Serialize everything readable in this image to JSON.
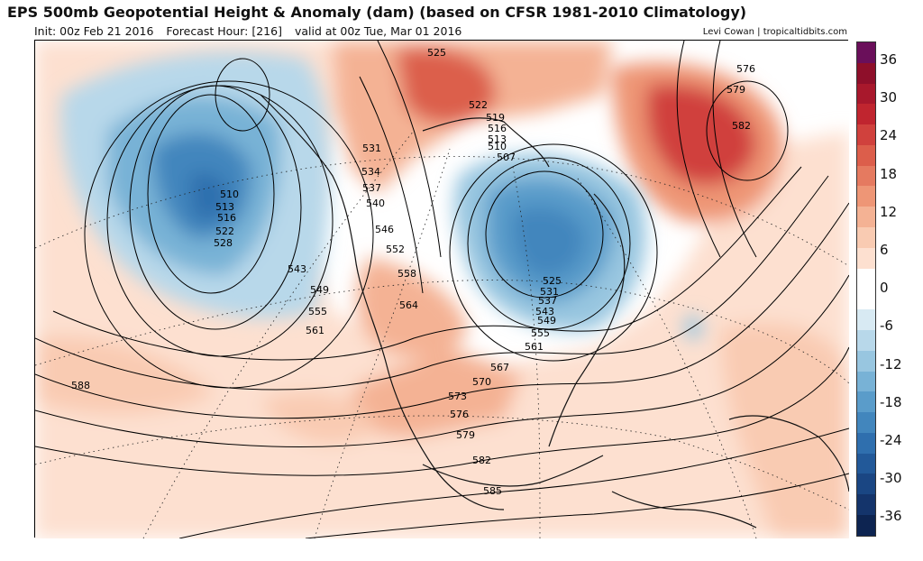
{
  "header": {
    "title": "EPS 500mb Geopotential Height & Anomaly (dam) (based on CFSR 1981-2010 Climatology)",
    "init": "Init: 00z Feb 21 2016",
    "forecast_hour": "Forecast Hour: [216]",
    "valid": "valid at 00z Tue, Mar 01 2016",
    "credit": "Levi Cowan | tropicaltidbits.com"
  },
  "colorbar": {
    "labels": [
      "36",
      "30",
      "24",
      "18",
      "12",
      "6",
      "0",
      "-6",
      "-12",
      "-18",
      "-24",
      "-30",
      "-36"
    ],
    "colors": [
      "#6a0f5a",
      "#8e0f2a",
      "#a8182c",
      "#c0252f",
      "#d0413d",
      "#dc5e4b",
      "#e57a60",
      "#ee9676",
      "#f4b294",
      "#f9cbb2",
      "#fde0d0",
      "#ffffff",
      "#ffffff",
      "#d8eaf3",
      "#b8d8ea",
      "#98c6e0",
      "#78b2d6",
      "#5a9cca",
      "#4286bd",
      "#2f6fae",
      "#225999",
      "#1a4683",
      "#14346b",
      "#0d2451"
    ]
  },
  "contour_labels": {
    "west": [
      "510",
      "513",
      "516",
      "522",
      "528",
      "543",
      "549",
      "555",
      "561"
    ],
    "west_coast": [
      "531",
      "534",
      "537",
      "540",
      "546",
      "552",
      "558",
      "564"
    ],
    "east": [
      "525",
      "522",
      "519",
      "516",
      "513",
      "510",
      "507"
    ],
    "east_lows": [
      "525",
      "531",
      "537",
      "543",
      "549",
      "555",
      "561"
    ],
    "south": [
      "567",
      "570",
      "573",
      "576",
      "579",
      "582",
      "585",
      "588"
    ],
    "atlantic": [
      "576",
      "579",
      "582"
    ]
  },
  "colors": {
    "positive_anomaly": "#f4b294",
    "negative_anomaly": "#4286bd",
    "land_border": "#000000"
  }
}
